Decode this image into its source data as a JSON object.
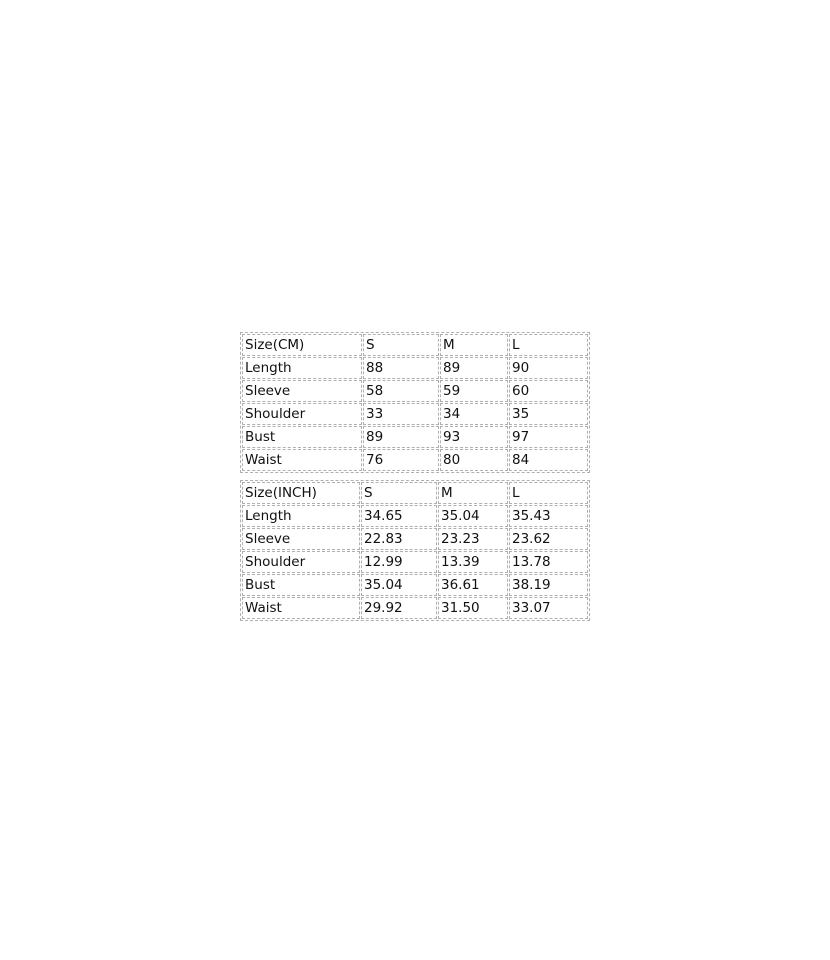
{
  "tables": [
    {
      "header": [
        "Size(CM)",
        "S",
        "M",
        "L"
      ],
      "rows": [
        [
          "Length",
          "88",
          "89",
          "90"
        ],
        [
          "Sleeve",
          "58",
          "59",
          "60"
        ],
        [
          "Shoulder",
          "33",
          "34",
          "35"
        ],
        [
          "Bust",
          "89",
          "93",
          "97"
        ],
        [
          "Waist",
          "76",
          "80",
          "84"
        ]
      ]
    },
    {
      "header": [
        "Size(INCH)",
        "S",
        "M",
        "L"
      ],
      "rows": [
        [
          "Length",
          "34.65",
          "35.04",
          "35.43"
        ],
        [
          "Sleeve",
          "22.83",
          "23.23",
          "23.62"
        ],
        [
          "Shoulder",
          "12.99",
          "13.39",
          "13.78"
        ],
        [
          "Bust",
          "35.04",
          "36.61",
          "38.19"
        ],
        [
          "Waist",
          "29.92",
          "31.50",
          "33.07"
        ]
      ]
    }
  ]
}
